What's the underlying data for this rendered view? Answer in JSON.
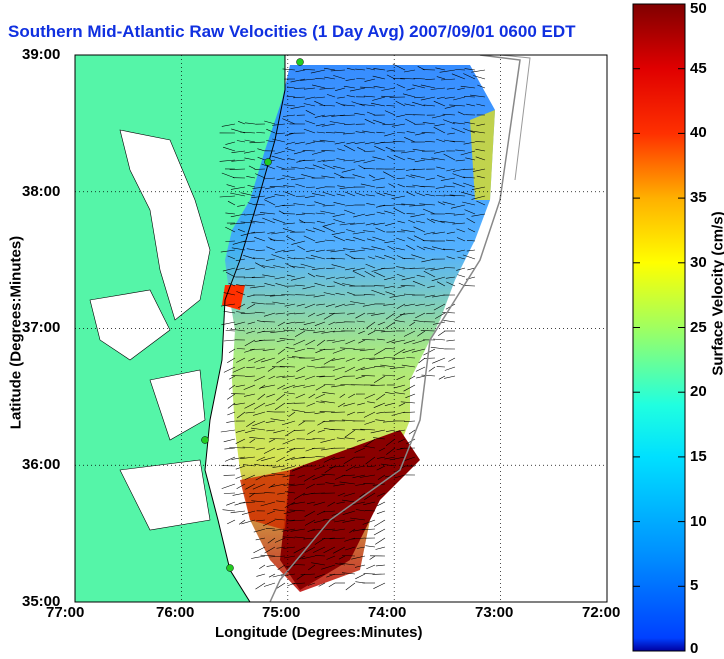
{
  "title": "Southern Mid-Atlantic Raw Velocities (1 Day Avg) 2007/09/01 0600 EDT",
  "axes": {
    "xlabel": "Longitude (Degrees:Minutes)",
    "ylabel": "Latitude (Degrees:Minutes)",
    "x_ticks": [
      "77:00",
      "76:00",
      "75:00",
      "74:00",
      "73:00",
      "72:00"
    ],
    "y_ticks": [
      "39:00",
      "38:00",
      "37:00",
      "36:00",
      "35:00"
    ],
    "xlim": [
      -77,
      -72
    ],
    "ylim": [
      35,
      39
    ]
  },
  "colorbar": {
    "label": "Surface Velocity (cm/s)",
    "ticks": [
      "50",
      "45",
      "40",
      "35",
      "30",
      "25",
      "20",
      "15",
      "10",
      "5",
      "0"
    ],
    "range": [
      0,
      50
    ],
    "colormap": "jet"
  },
  "colors": {
    "land": "#55f5a8",
    "title": "#1030e0",
    "station": "#22cc22"
  }
}
